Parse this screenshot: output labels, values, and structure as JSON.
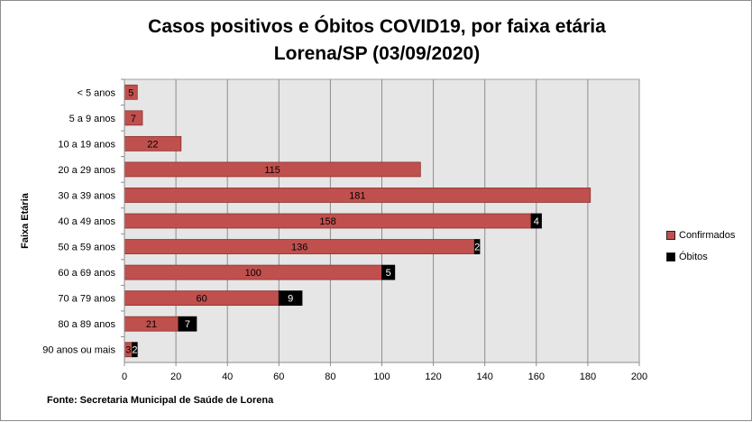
{
  "chart_data": {
    "type": "bar",
    "orientation": "horizontal",
    "stacked": true,
    "title_line1": "Casos positivos e Óbitos COVID19, por faixa etária",
    "title_line2": "Lorena/SP (03/09/2020)",
    "ylabel": "Faixa Etária",
    "xlabel": "",
    "categories": [
      "< 5 anos",
      "5 a 9 anos",
      "10 a 19 anos",
      "20 a 29 anos",
      "30 a 39 anos",
      "40 a 49 anos",
      "50 a 59 anos",
      "60 a 69 anos",
      "70 a 79 anos",
      "80 a 89 anos",
      "90 anos ou mais"
    ],
    "series": [
      {
        "name": "Confirmados",
        "color": "#c0504d",
        "values": [
          5,
          7,
          22,
          115,
          181,
          158,
          136,
          100,
          60,
          21,
          3
        ]
      },
      {
        "name": "Óbitos",
        "color": "#000000",
        "values": [
          0,
          0,
          0,
          0,
          0,
          4,
          2,
          5,
          9,
          7,
          2
        ]
      }
    ],
    "value_labels": {
      "Confirmados": [
        "5",
        "7",
        "22",
        "115",
        "181",
        "158",
        "136",
        "100",
        "60",
        "21",
        "3"
      ],
      "Óbitos": [
        "",
        "",
        "",
        "",
        "",
        "4",
        "2",
        "5",
        "9",
        "7",
        "2"
      ]
    },
    "xlim": [
      0,
      200
    ],
    "xticks": [
      "0",
      "20",
      "40",
      "60",
      "80",
      "100",
      "120",
      "140",
      "160",
      "180",
      "200"
    ],
    "grid": true,
    "legend_position": "right",
    "source": "Fonte: Secretaria Municipal  de Saúde de Lorena"
  }
}
